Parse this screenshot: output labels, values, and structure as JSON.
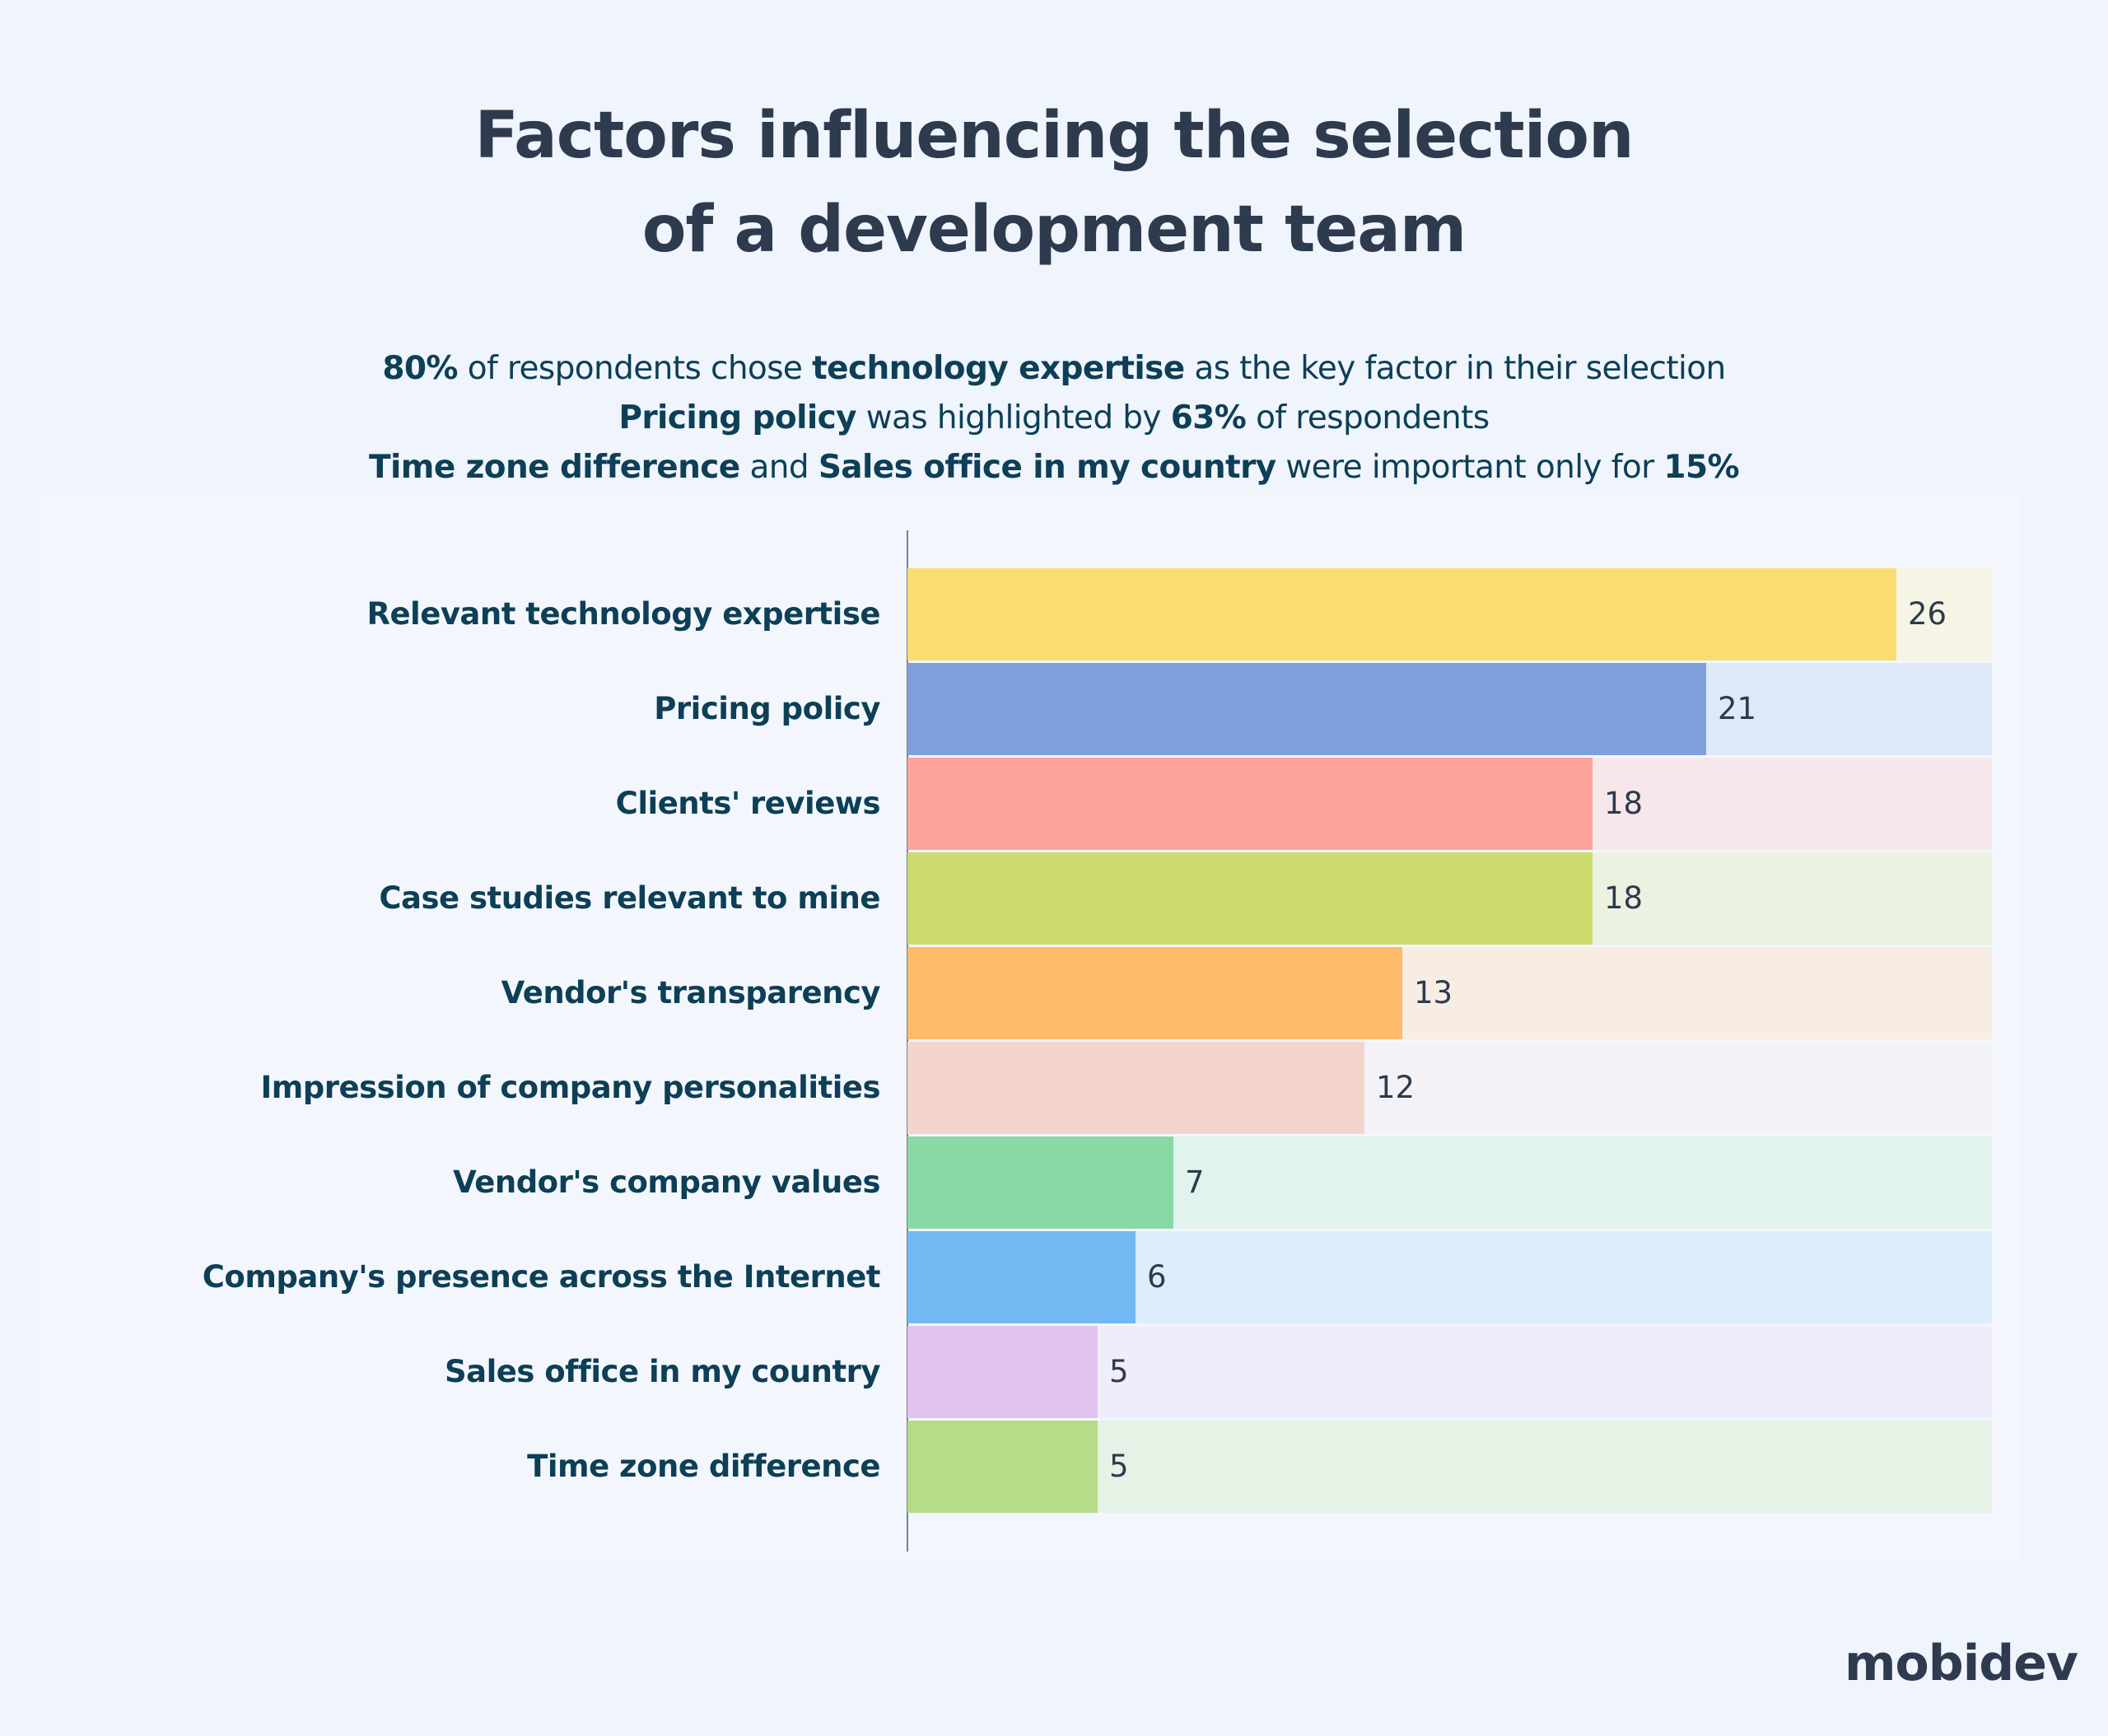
{
  "title": {
    "line1": "Factors influencing the selection",
    "line2": "of a development team"
  },
  "subtitle": {
    "line1": [
      {
        "text": "80%",
        "bold": true
      },
      {
        "text": " of respondents chose ",
        "bold": false
      },
      {
        "text": "technology expertise",
        "bold": true
      },
      {
        "text": " as the key factor in their selection",
        "bold": false
      }
    ],
    "line2": [
      {
        "text": "Pricing policy",
        "bold": true
      },
      {
        "text": " was highlighted by ",
        "bold": false
      },
      {
        "text": "63%",
        "bold": true
      },
      {
        "text": " of respondents",
        "bold": false
      }
    ],
    "line3": [
      {
        "text": "Time zone difference",
        "bold": true
      },
      {
        "text": " and ",
        "bold": false
      },
      {
        "text": "Sales office in my country",
        "bold": true
      },
      {
        "text": " were important only for ",
        "bold": false
      },
      {
        "text": "15%",
        "bold": true
      }
    ]
  },
  "chart_data": {
    "type": "bar",
    "orientation": "horizontal",
    "title": "Factors influencing the selection of a development team",
    "xlabel": "",
    "ylabel": "",
    "xlim": [
      0,
      28.5
    ],
    "grid": false,
    "legend": "none",
    "categories": [
      "Relevant technology expertise",
      "Pricing policy",
      "Clients' reviews",
      "Case studies relevant to mine",
      "Vendor's transparency",
      "Impression of company personalities",
      "Vendor's company values",
      "Company's presence across the Internet",
      "Sales office in my country",
      "Time zone difference"
    ],
    "values": [
      26,
      21,
      18,
      18,
      13,
      12,
      7,
      6,
      5,
      5
    ],
    "colors": [
      "#fadd71",
      "#7fa0db",
      "#fda39c",
      "#cddb6e",
      "#feb96a",
      "#f4d5cd",
      "#88d9a6",
      "#72b9f4",
      "#e1c3f0",
      "#b5dc87"
    ],
    "track_colors": [
      "#f6f5e5",
      "#dfe8f7",
      "#f7e7ea",
      "#ebf2e1",
      "#f7ede3",
      "#f3f2f6",
      "#e0f3ec",
      "#dcedfc",
      "#efedfa",
      "#e7f2e7"
    ]
  },
  "brand": {
    "logo_text": "mobidev"
  }
}
